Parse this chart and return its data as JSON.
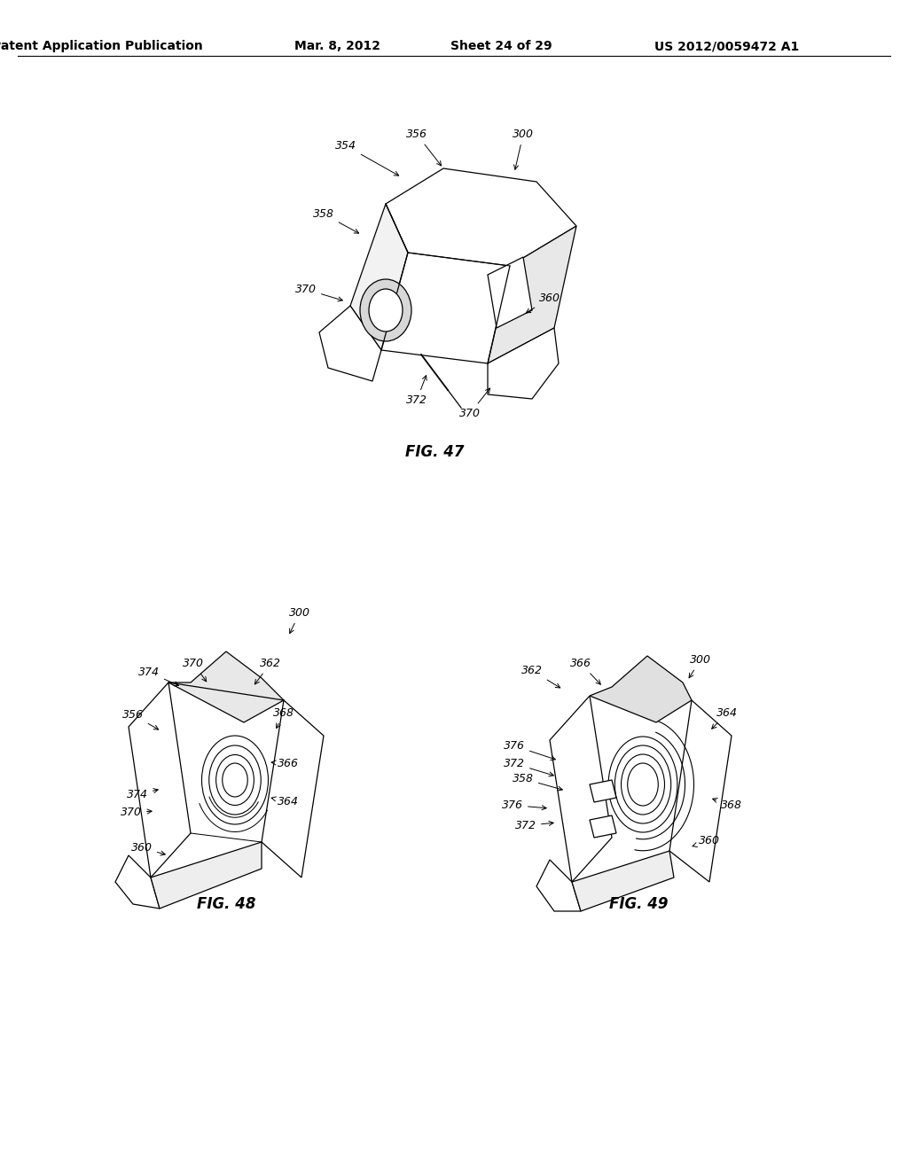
{
  "background_color": "#ffffff",
  "page_width": 10.24,
  "page_height": 13.2,
  "header_text": "Patent Application Publication",
  "header_date": "Mar. 8, 2012",
  "header_sheet": "Sheet 24 of 29",
  "header_patent": "US 2012/0059472 A1",
  "fig47_caption": "FIG. 47",
  "fig48_caption": "FIG. 48",
  "fig49_caption": "FIG. 49",
  "caption_fontsize": 12,
  "label_fontsize": 9,
  "line_color": "#000000",
  "line_width": 0.9
}
